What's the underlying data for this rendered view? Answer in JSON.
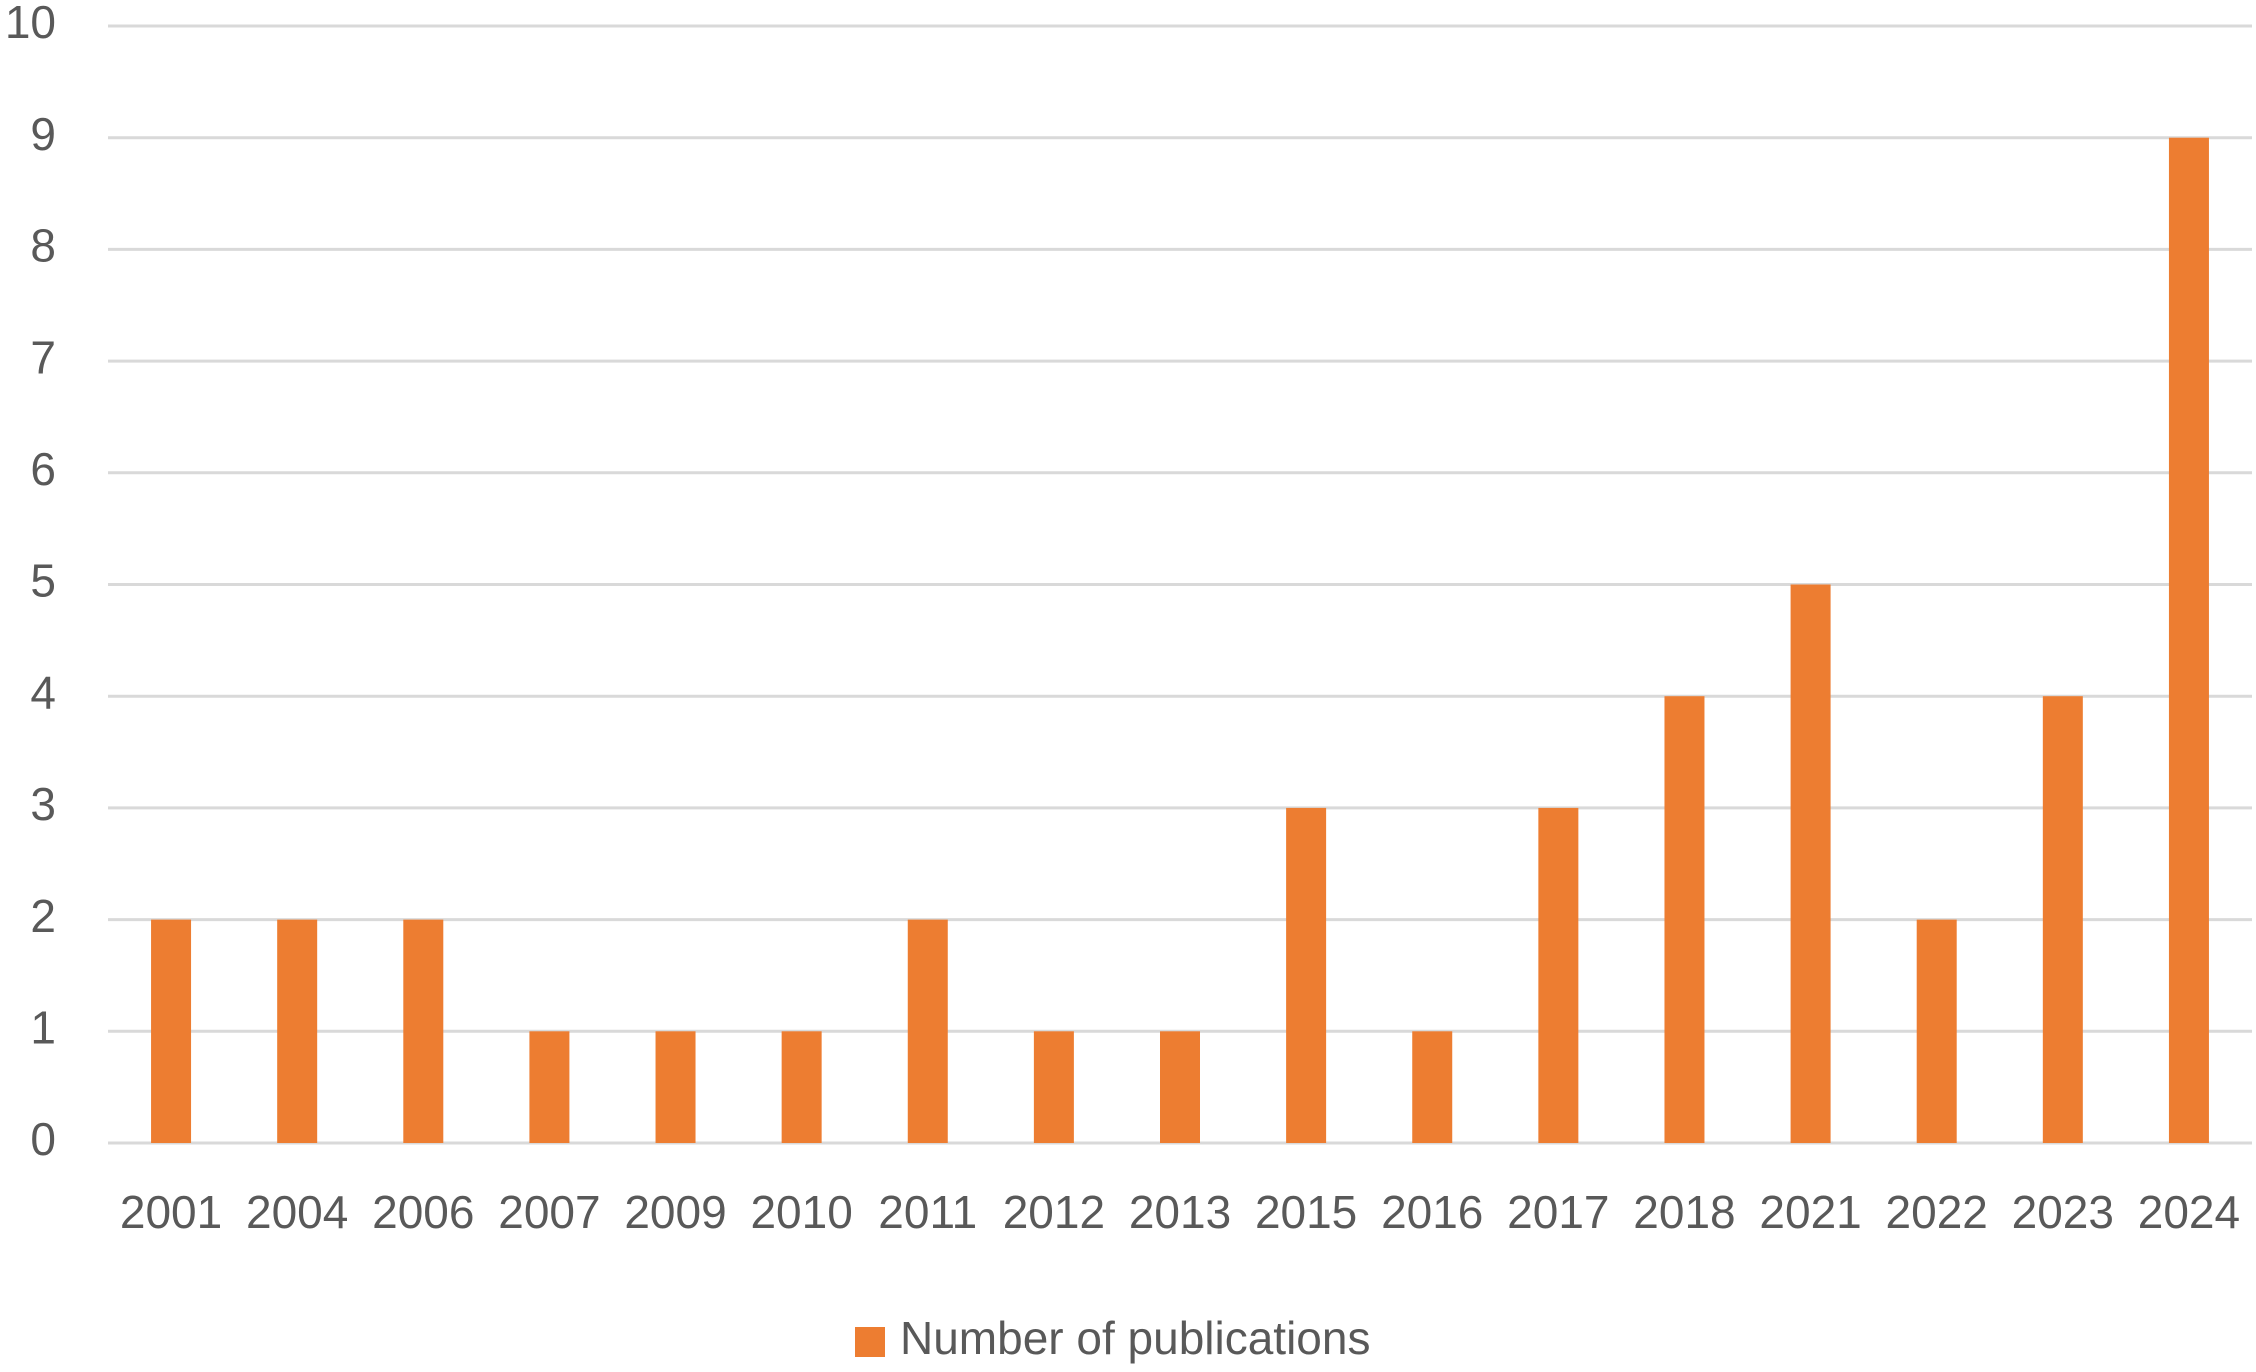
{
  "chart_data": {
    "type": "bar",
    "categories": [
      "2001",
      "2004",
      "2006",
      "2007",
      "2009",
      "2010",
      "2011",
      "2012",
      "2013",
      "2015",
      "2016",
      "2017",
      "2018",
      "2021",
      "2022",
      "2023",
      "2024"
    ],
    "series": [
      {
        "name": "Number of publications",
        "color": "#ed7d31",
        "values": [
          2,
          2,
          2,
          1,
          1,
          1,
          2,
          1,
          1,
          3,
          1,
          3,
          4,
          5,
          2,
          4,
          9
        ]
      }
    ],
    "ylim": [
      0,
      10
    ],
    "yticks": [
      0,
      1,
      2,
      3,
      4,
      5,
      6,
      7,
      8,
      9,
      10
    ],
    "grid": true,
    "legend": "bottom"
  }
}
